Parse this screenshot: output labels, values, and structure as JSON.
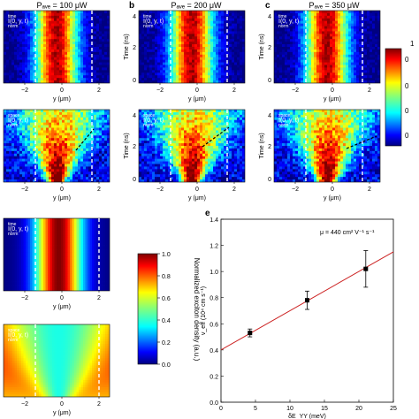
{
  "panels": {
    "a": {
      "letter": "",
      "title": "Pₐᵥₑ = 100 μW"
    },
    "b": {
      "letter": "b",
      "title": "Pₐᵥₑ = 200 μW"
    },
    "c": {
      "letter": "c",
      "title": "Pₐᵥₑ = 350 μW"
    },
    "e": {
      "letter": "e"
    }
  },
  "heatmap_labels": {
    "time_label": "I(0, y, t)",
    "space_label": "I(0, y, t)",
    "time_sup": "time",
    "time_sub": "norm",
    "space_sup": "space",
    "space_sub": "norm",
    "xlabel": "y (μm)",
    "ylabel": "Time (ns)",
    "xticks": [
      "−2",
      "0",
      "2"
    ],
    "yticks": [
      "0",
      "2",
      "4"
    ]
  },
  "colorbar": {
    "label": "Normalized exciton density (a.u.)",
    "ticks": [
      "0.0",
      "0.2",
      "0.4",
      "0.6",
      "0.8",
      "1.0"
    ],
    "top_partial_label": "1",
    "partial_ticks": [
      "0",
      "0",
      "0",
      "0"
    ]
  },
  "chart_data": {
    "type": "scatter",
    "annotation": "μ = 440 cm² V⁻¹ s⁻¹",
    "xlabel": "δE_YY (meV)",
    "ylabel": "v_eff (10⁴ cm s⁻¹)",
    "xlim": [
      0,
      25
    ],
    "ylim": [
      0.0,
      1.4
    ],
    "xticks": [
      0,
      5,
      10,
      15,
      20,
      25
    ],
    "yticks": [
      0.0,
      0.2,
      0.4,
      0.6,
      0.8,
      1.0,
      1.2,
      1.4
    ],
    "points": [
      {
        "x": 4.2,
        "y": 0.53,
        "err": 0.03
      },
      {
        "x": 12.5,
        "y": 0.78,
        "err": 0.07
      },
      {
        "x": 21.0,
        "y": 1.02,
        "err": 0.14
      }
    ],
    "fit": {
      "x": [
        0,
        25
      ],
      "y": [
        0.4,
        1.15
      ]
    },
    "grid": false,
    "colors": {
      "fit": "#cc2222",
      "points": "#000000"
    }
  }
}
